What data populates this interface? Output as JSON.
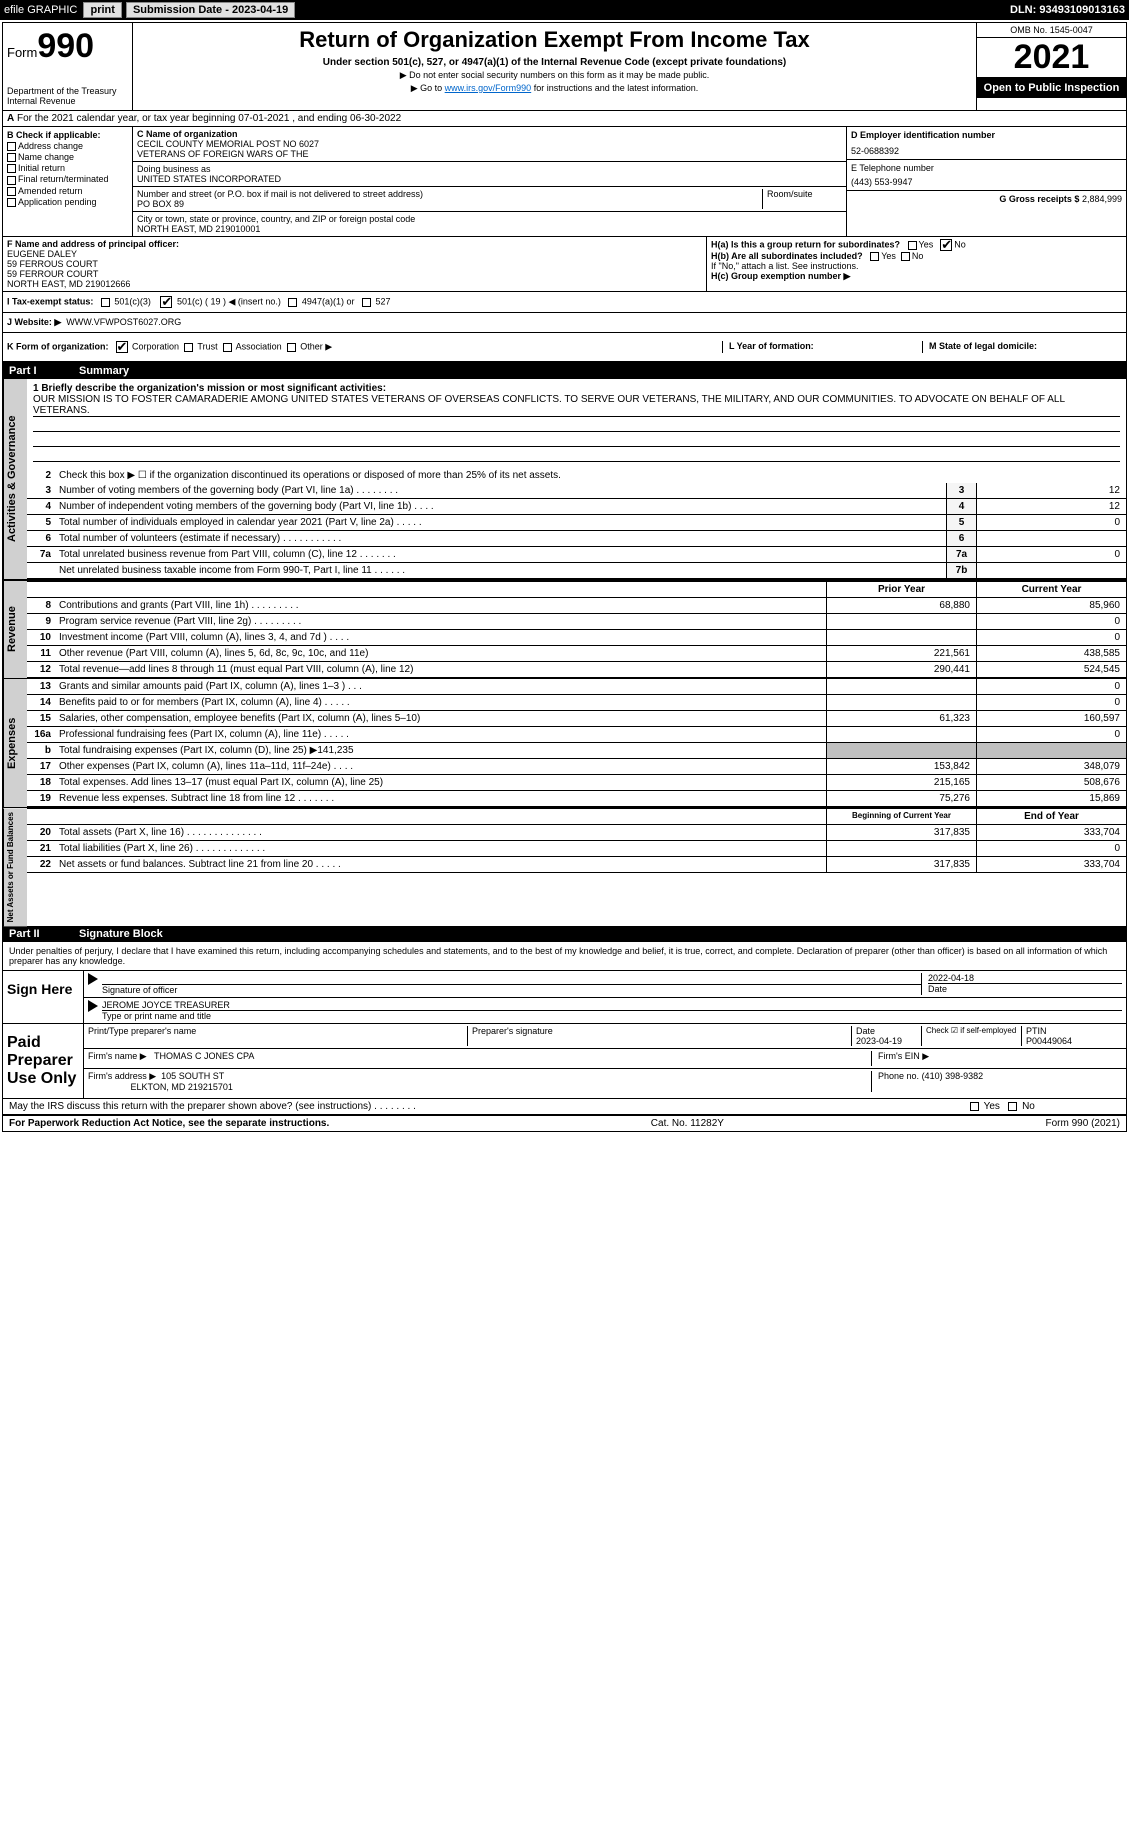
{
  "top_bar": {
    "efile_label": "efile GRAPHIC",
    "print_btn": "print",
    "submission_date_label": "Submission Date - 2023-04-19",
    "dln_label": "DLN: 93493109013163"
  },
  "header": {
    "form_word": "Form",
    "form_num": "990",
    "dept": "Department of the Treasury",
    "irs": "Internal Revenue",
    "title": "Return of Organization Exempt From Income Tax",
    "subtitle": "Under section 501(c), 527, or 4947(a)(1) of the Internal Revenue Code (except private foundations)",
    "note1": "▶ Do not enter social security numbers on this form as it may be made public.",
    "note2_pre": "▶ Go to ",
    "note2_link": "www.irs.gov/Form990",
    "note2_post": " for instructions and the latest information.",
    "omb": "OMB No. 1545-0047",
    "year": "2021",
    "open": "Open to Public Inspection"
  },
  "row_a": "For the 2021 calendar year, or tax year beginning 07-01-2021    , and ending 06-30-2022",
  "box_b": {
    "title": "B Check if applicable:",
    "items": [
      "Address change",
      "Name change",
      "Initial return",
      "Final return/terminated",
      "Amended return",
      "Application pending"
    ]
  },
  "box_c": {
    "name_label": "C Name of organization",
    "name1": "CECIL COUNTY MEMORIAL POST NO 6027",
    "name2": "VETERANS OF FOREIGN WARS OF THE",
    "dba_label": "Doing business as",
    "dba": "UNITED STATES INCORPORATED",
    "addr_label": "Number and street (or P.O. box if mail is not delivered to street address)",
    "room_label": "Room/suite",
    "addr": "PO BOX 89",
    "city_label": "City or town, state or province, country, and ZIP or foreign postal code",
    "city": "NORTH EAST, MD  219010001"
  },
  "box_d": {
    "ein_label": "D Employer identification number",
    "ein": "52-0688392",
    "phone_label": "E Telephone number",
    "phone": "(443) 553-9947",
    "gross_label": "G Gross receipts $",
    "gross": "2,884,999"
  },
  "box_f": {
    "label": "F  Name and address of principal officer:",
    "name": "EUGENE DALEY",
    "l1": "59 FERROUS COURT",
    "l2": "59 FERROUR COURT",
    "l3": "NORTH EAST, MD  219012666"
  },
  "box_h": {
    "ha": "H(a)  Is this a group return for subordinates?",
    "yes": "Yes",
    "no": "No",
    "hb": "H(b)  Are all subordinates included?",
    "hb_note": "If \"No,\" attach a list. See instructions.",
    "hc": "H(c)  Group exemption number ▶"
  },
  "row_i": {
    "label": "I   Tax-exempt status:",
    "o1": "501(c)(3)",
    "o2": "501(c) ( 19 ) ◀ (insert no.)",
    "o3": "4947(a)(1) or",
    "o4": "527"
  },
  "row_j": {
    "label": "J   Website: ▶",
    "val": "WWW.VFWPOST6027.ORG"
  },
  "row_k": {
    "label": "K Form of organization:",
    "corp": "Corporation",
    "trust": "Trust",
    "assoc": "Association",
    "other": "Other ▶",
    "l_label": "L Year of formation:",
    "m_label": "M State of legal domicile:"
  },
  "part1": {
    "label": "Part I",
    "title": "Summary"
  },
  "summary": {
    "l1_label": "1   Briefly describe the organization's mission or most significant activities:",
    "mission": "OUR MISSION IS TO FOSTER CAMARADERIE AMONG UNITED STATES VETERANS OF OVERSEAS CONFLICTS. TO SERVE OUR VETERANS, THE MILITARY, AND OUR COMMUNITIES. TO ADVOCATE ON BEHALF OF ALL VETERANS.",
    "l2": "Check this box ▶ ☐  if the organization discontinued its operations or disposed of more than 25% of its net assets.",
    "lines_ag": [
      {
        "n": "3",
        "d": "Number of voting members of the governing body (Part VI, line 1a)   .    .    .    .    .    .    .    .",
        "b": "3",
        "v": "12"
      },
      {
        "n": "4",
        "d": "Number of independent voting members of the governing body (Part VI, line 1b)    .    .    .    .",
        "b": "4",
        "v": "12"
      },
      {
        "n": "5",
        "d": "Total number of individuals employed in calendar year 2021 (Part V, line 2a)    .    .    .    .    .",
        "b": "5",
        "v": "0"
      },
      {
        "n": "6",
        "d": "Total number of volunteers (estimate if necessary)    .    .    .    .    .    .    .    .    .    .    .",
        "b": "6",
        "v": ""
      },
      {
        "n": "7a",
        "d": "Total unrelated business revenue from Part VIII, column (C), line 12    .    .    .    .    .    .    .",
        "b": "7a",
        "v": "0"
      },
      {
        "n": "",
        "d": "Net unrelated business taxable income from Form 990-T, Part I, line 11    .    .    .    .    .    .",
        "b": "7b",
        "v": ""
      }
    ],
    "prior_label": "Prior Year",
    "current_label": "Current Year",
    "revenue_lines": [
      {
        "n": "8",
        "d": "Contributions and grants (Part VIII, line 1h)    .    .    .    .    .    .    .    .    .",
        "p": "68,880",
        "c": "85,960"
      },
      {
        "n": "9",
        "d": "Program service revenue (Part VIII, line 2g)    .    .    .    .    .    .    .    .    .",
        "p": "",
        "c": "0"
      },
      {
        "n": "10",
        "d": "Investment income (Part VIII, column (A), lines 3, 4, and 7d )    .    .    .    .",
        "p": "",
        "c": "0"
      },
      {
        "n": "11",
        "d": "Other revenue (Part VIII, column (A), lines 5, 6d, 8c, 9c, 10c, and 11e)",
        "p": "221,561",
        "c": "438,585"
      },
      {
        "n": "12",
        "d": "Total revenue—add lines 8 through 11 (must equal Part VIII, column (A), line 12)",
        "p": "290,441",
        "c": "524,545"
      }
    ],
    "expense_lines": [
      {
        "n": "13",
        "d": "Grants and similar amounts paid (Part IX, column (A), lines 1–3 )   .    .    .",
        "p": "",
        "c": "0"
      },
      {
        "n": "14",
        "d": "Benefits paid to or for members (Part IX, column (A), line 4)   .    .    .    .    .",
        "p": "",
        "c": "0"
      },
      {
        "n": "15",
        "d": "Salaries, other compensation, employee benefits (Part IX, column (A), lines 5–10)",
        "p": "61,323",
        "c": "160,597"
      },
      {
        "n": "16a",
        "d": "Professional fundraising fees (Part IX, column (A), line 11e)   .    .    .    .    .",
        "p": "",
        "c": "0"
      },
      {
        "n": "b",
        "d": "Total fundraising expenses (Part IX, column (D), line 25) ▶141,235",
        "p": "__SHADED__",
        "c": "__SHADED__"
      },
      {
        "n": "17",
        "d": "Other expenses (Part IX, column (A), lines 11a–11d, 11f–24e)   .    .    .    .",
        "p": "153,842",
        "c": "348,079"
      },
      {
        "n": "18",
        "d": "Total expenses. Add lines 13–17 (must equal Part IX, column (A), line 25)",
        "p": "215,165",
        "c": "508,676"
      },
      {
        "n": "19",
        "d": "Revenue less expenses. Subtract line 18 from line 12   .    .    .    .    .    .    .",
        "p": "75,276",
        "c": "15,869"
      }
    ],
    "begin_label": "Beginning of Current Year",
    "end_label": "End of Year",
    "net_lines": [
      {
        "n": "20",
        "d": "Total assets (Part X, line 16)   .    .    .    .    .    .    .    .    .    .    .    .    .    .",
        "p": "317,835",
        "c": "333,704"
      },
      {
        "n": "21",
        "d": "Total liabilities (Part X, line 26)   .    .    .    .    .    .    .    .    .    .    .    .    .",
        "p": "",
        "c": "0"
      },
      {
        "n": "22",
        "d": "Net assets or fund balances. Subtract line 21 from line 20    .    .    .    .    .",
        "p": "317,835",
        "c": "333,704"
      }
    ]
  },
  "vtabs": {
    "ag": "Activities & Governance",
    "rev": "Revenue",
    "exp": "Expenses",
    "net": "Net Assets or Fund Balances"
  },
  "part2": {
    "label": "Part II",
    "title": "Signature Block"
  },
  "sig": {
    "perjury": "Under penalties of perjury, I declare that I have examined this return, including accompanying schedules and statements, and to the best of my knowledge and belief, it is true, correct, and complete. Declaration of preparer (other than officer) is based on all information of which preparer has any knowledge.",
    "sign_here": "Sign Here",
    "sig_officer": "Signature of officer",
    "date": "2022-04-18",
    "date_label": "Date",
    "name_title": "JEROME JOYCE TREASURER",
    "name_label": "Type or print name and title",
    "paid_label": "Paid Preparer Use Only",
    "pt_name_label": "Print/Type preparer's name",
    "pt_sig_label": "Preparer's signature",
    "pt_date_label": "Date",
    "pt_date": "2023-04-19",
    "check_if": "Check ☑ if self-employed",
    "ptin_label": "PTIN",
    "ptin": "P00449064",
    "firm_name_label": "Firm's name     ▶",
    "firm_name": "THOMAS C JONES CPA",
    "firm_ein_label": "Firm's EIN ▶",
    "firm_addr_label": "Firm's address ▶",
    "firm_addr1": "105 SOUTH ST",
    "firm_addr2": "ELKTON, MD  219215701",
    "firm_phone_label": "Phone no.",
    "firm_phone": "(410) 398-9382",
    "may_irs": "May the IRS discuss this return with the preparer shown above? (see instructions)    .    .    .    .    .    .    .    .",
    "yes": "Yes",
    "no": "No"
  },
  "footer": {
    "left": "For Paperwork Reduction Act Notice, see the separate instructions.",
    "mid": "Cat. No. 11282Y",
    "right": "Form 990 (2021)"
  }
}
